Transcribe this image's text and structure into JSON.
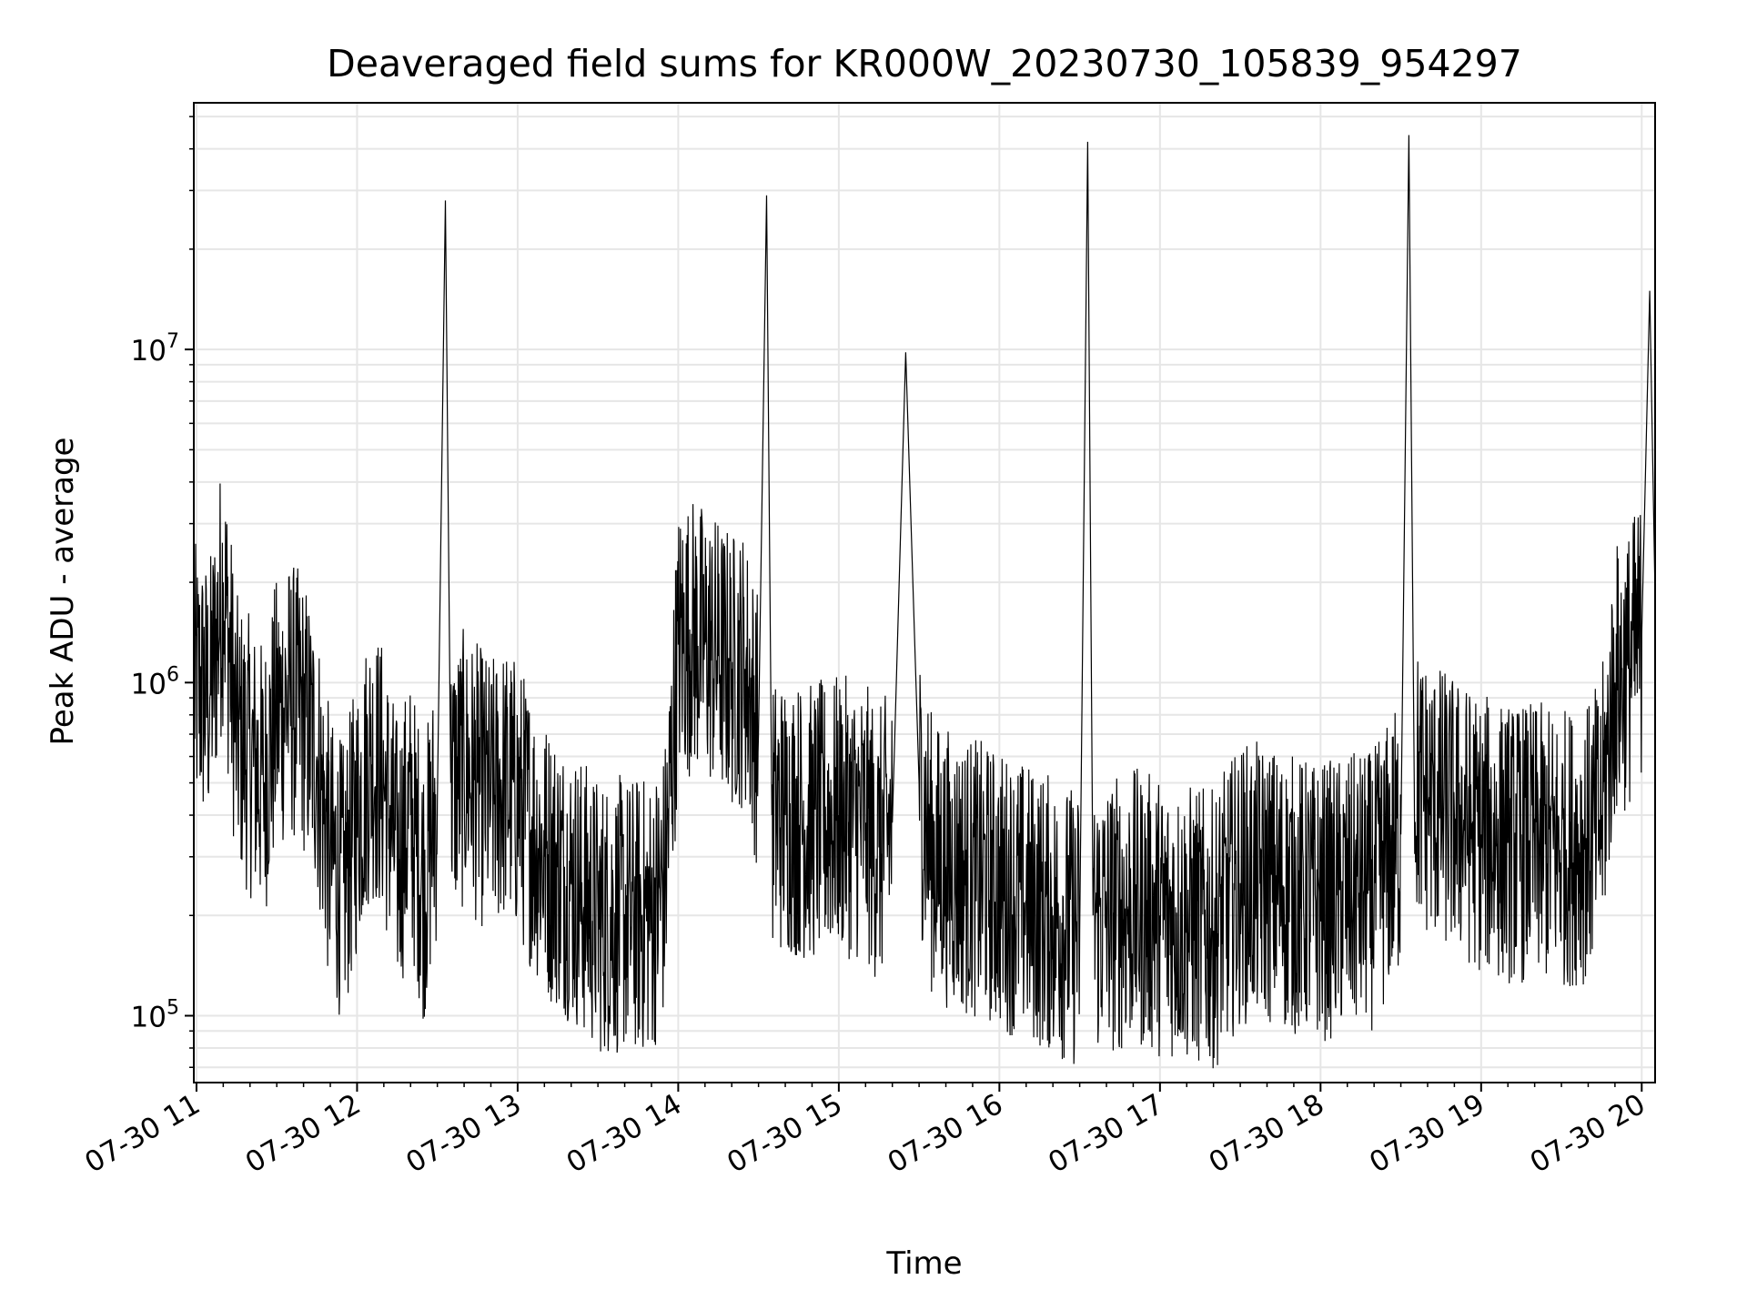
{
  "chart_data": {
    "type": "line",
    "title": "Deaveraged field sums for KR000W_20230730_105839_954297",
    "xlabel": "Time",
    "ylabel": "Peak ADU - average",
    "yscale": "log",
    "ylim": [
      63000,
      55000000
    ],
    "xlim": [
      "2023-07-30 10:59",
      "2023-07-30 20:05"
    ],
    "grid": true,
    "legend": "none",
    "colors": {
      "line": "#000000",
      "grid": "#e6e6e6",
      "axes": "#000000"
    },
    "x_tick_labels": [
      "07-30 11",
      "07-30 12",
      "07-30 13",
      "07-30 14",
      "07-30 15",
      "07-30 16",
      "07-30 17",
      "07-30 18",
      "07-30 19",
      "07-30 20"
    ],
    "y_tick_labels": [
      {
        "value": 100000,
        "base": "10",
        "exp": "5"
      },
      {
        "value": 1000000,
        "base": "10",
        "exp": "6"
      },
      {
        "value": 10000000,
        "base": "10",
        "exp": "7"
      }
    ],
    "series": [
      {
        "x": [
          "2023-07-30 10:59",
          "2023-07-30 11:05",
          "2023-07-30 11:10",
          "2023-07-30 11:15",
          "2023-07-30 11:20",
          "2023-07-30 11:25",
          "2023-07-30 11:30",
          "2023-07-30 11:35",
          "2023-07-30 11:40",
          "2023-07-30 11:45",
          "2023-07-30 11:50",
          "2023-07-30 11:55",
          "2023-07-30 12:00",
          "2023-07-30 12:05",
          "2023-07-30 12:10",
          "2023-07-30 12:15",
          "2023-07-30 12:20",
          "2023-07-30 12:25",
          "2023-07-30 12:30",
          "2023-07-30 12:33",
          "2023-07-30 12:35",
          "2023-07-30 12:40",
          "2023-07-30 12:45",
          "2023-07-30 12:50",
          "2023-07-30 12:55",
          "2023-07-30 13:00",
          "2023-07-30 13:10",
          "2023-07-30 13:20",
          "2023-07-30 13:30",
          "2023-07-30 13:40",
          "2023-07-30 13:50",
          "2023-07-30 13:55",
          "2023-07-30 14:00",
          "2023-07-30 14:05",
          "2023-07-30 14:10",
          "2023-07-30 14:15",
          "2023-07-30 14:20",
          "2023-07-30 14:25",
          "2023-07-30 14:30",
          "2023-07-30 14:33",
          "2023-07-30 14:35",
          "2023-07-30 14:40",
          "2023-07-30 14:50",
          "2023-07-30 15:00",
          "2023-07-30 15:10",
          "2023-07-30 15:15",
          "2023-07-30 15:20",
          "2023-07-30 15:25",
          "2023-07-30 15:30",
          "2023-07-30 15:35",
          "2023-07-30 15:40",
          "2023-07-30 15:50",
          "2023-07-30 16:00",
          "2023-07-30 16:10",
          "2023-07-30 16:20",
          "2023-07-30 16:30",
          "2023-07-30 16:33",
          "2023-07-30 16:35",
          "2023-07-30 16:40",
          "2023-07-30 16:50",
          "2023-07-30 17:00",
          "2023-07-30 17:10",
          "2023-07-30 17:20",
          "2023-07-30 17:30",
          "2023-07-30 17:40",
          "2023-07-30 17:50",
          "2023-07-30 18:00",
          "2023-07-30 18:10",
          "2023-07-30 18:20",
          "2023-07-30 18:30",
          "2023-07-30 18:33",
          "2023-07-30 18:35",
          "2023-07-30 18:40",
          "2023-07-30 18:50",
          "2023-07-30 19:00",
          "2023-07-30 19:10",
          "2023-07-30 19:20",
          "2023-07-30 19:30",
          "2023-07-30 19:40",
          "2023-07-30 19:45",
          "2023-07-30 19:50",
          "2023-07-30 19:55",
          "2023-07-30 20:00",
          "2023-07-30 20:03",
          "2023-07-30 20:05"
        ],
        "y": [
          1000000,
          900000,
          2000000,
          700000,
          600000,
          500000,
          800000,
          900000,
          800000,
          600000,
          300000,
          250000,
          400000,
          600000,
          500000,
          300000,
          400000,
          250000,
          450000,
          28000000,
          500000,
          550000,
          500000,
          450000,
          500000,
          450000,
          300000,
          250000,
          200000,
          200000,
          200000,
          250000,
          1300000,
          1400000,
          1300000,
          1200000,
          1100000,
          1100000,
          700000,
          29000000,
          400000,
          400000,
          380000,
          400000,
          380000,
          320000,
          380000,
          9800000,
          500000,
          300000,
          280000,
          260000,
          240000,
          220000,
          200000,
          180000,
          42000000,
          200000,
          200000,
          210000,
          200000,
          190000,
          180000,
          250000,
          250000,
          230000,
          220000,
          230000,
          240000,
          350000,
          44000000,
          500000,
          450000,
          400000,
          350000,
          330000,
          330000,
          320000,
          330000,
          400000,
          1000000,
          1100000,
          1400000,
          15000000,
          1800000
        ]
      }
    ]
  }
}
